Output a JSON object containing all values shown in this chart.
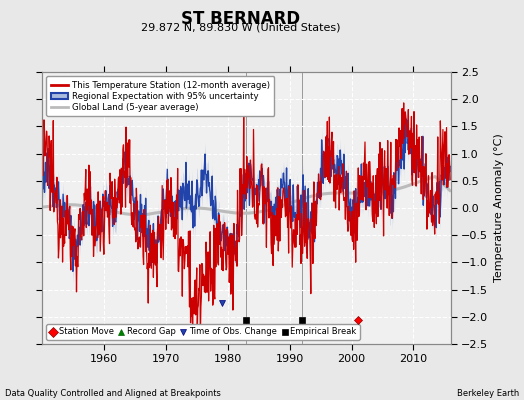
{
  "title": "ST BERNARD",
  "subtitle": "29.872 N, 89.830 W (United States)",
  "ylabel": "Temperature Anomaly (°C)",
  "xlabel_bottom_left": "Data Quality Controlled and Aligned at Breakpoints",
  "xlabel_bottom_right": "Berkeley Earth",
  "ylim": [
    -2.5,
    2.5
  ],
  "xlim": [
    1950,
    2016
  ],
  "yticks": [
    -2.5,
    -2,
    -1.5,
    -1,
    -0.5,
    0,
    0.5,
    1,
    1.5,
    2,
    2.5
  ],
  "xticks": [
    1960,
    1970,
    1980,
    1990,
    2000,
    2010
  ],
  "background_color": "#e8e8e8",
  "plot_bg_color": "#f0f0f0",
  "grid_color": "#ffffff",
  "empirical_breaks": [
    1983,
    1992
  ],
  "station_moves": [
    2001
  ],
  "time_obs_changes": [
    1979
  ],
  "red_line_color": "#cc0000",
  "blue_line_color": "#2244aa",
  "blue_fill_color": "#aabbdd",
  "gray_line_color": "#bbbbbb",
  "vertical_line_color": "#999999"
}
